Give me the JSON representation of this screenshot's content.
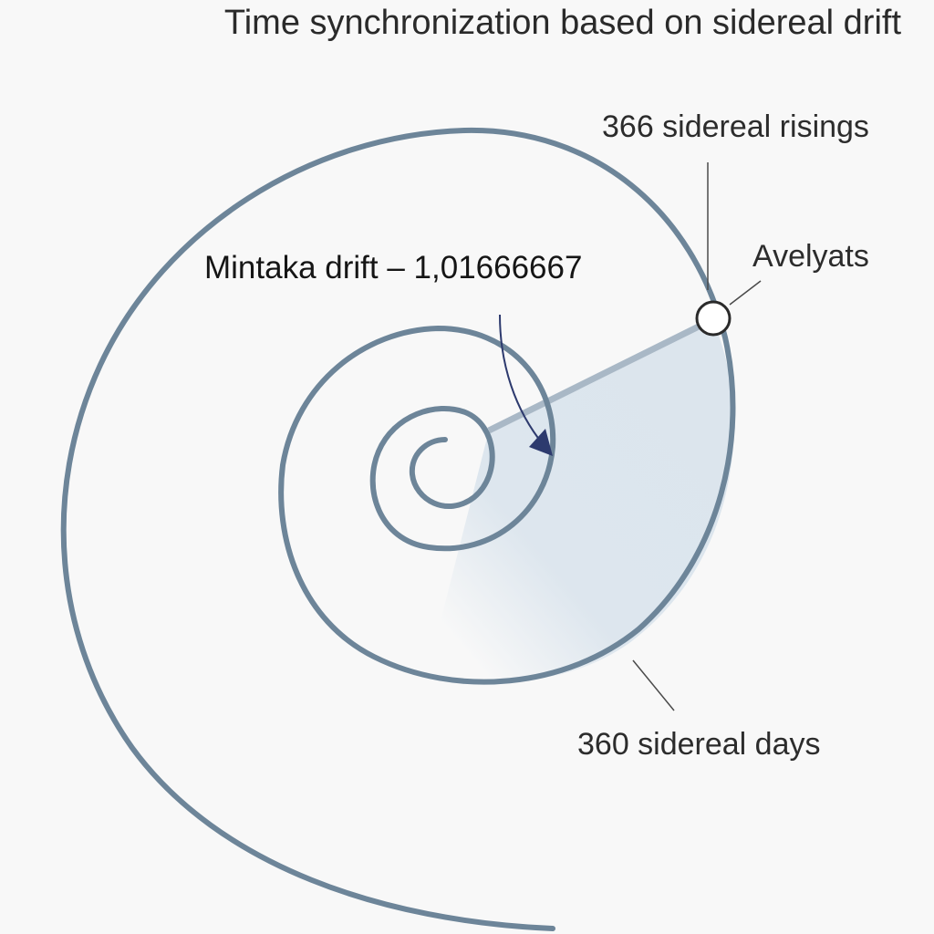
{
  "title": "Time synchronization based on sidereal drift",
  "labels": {
    "sidereal_risings": "366 sidereal risings",
    "star_marker": "Avelyats",
    "drift": "Mintaka drift – 1,01666667",
    "sidereal_days": "360 sidereal days"
  },
  "colors": {
    "background": "#f8f8f8",
    "spiral": "#6d8599",
    "sector_fill": "#dde6ee",
    "radius_line": "#a9b8c6",
    "drift_arrow": "#2d3a6e",
    "leader_line": "#4a4a4a",
    "marker_fill": "#ffffff",
    "marker_stroke": "#2a2a2a"
  },
  "icons": {
    "marker": "circle-marker-icon",
    "arrow": "curved-arrow-icon"
  }
}
